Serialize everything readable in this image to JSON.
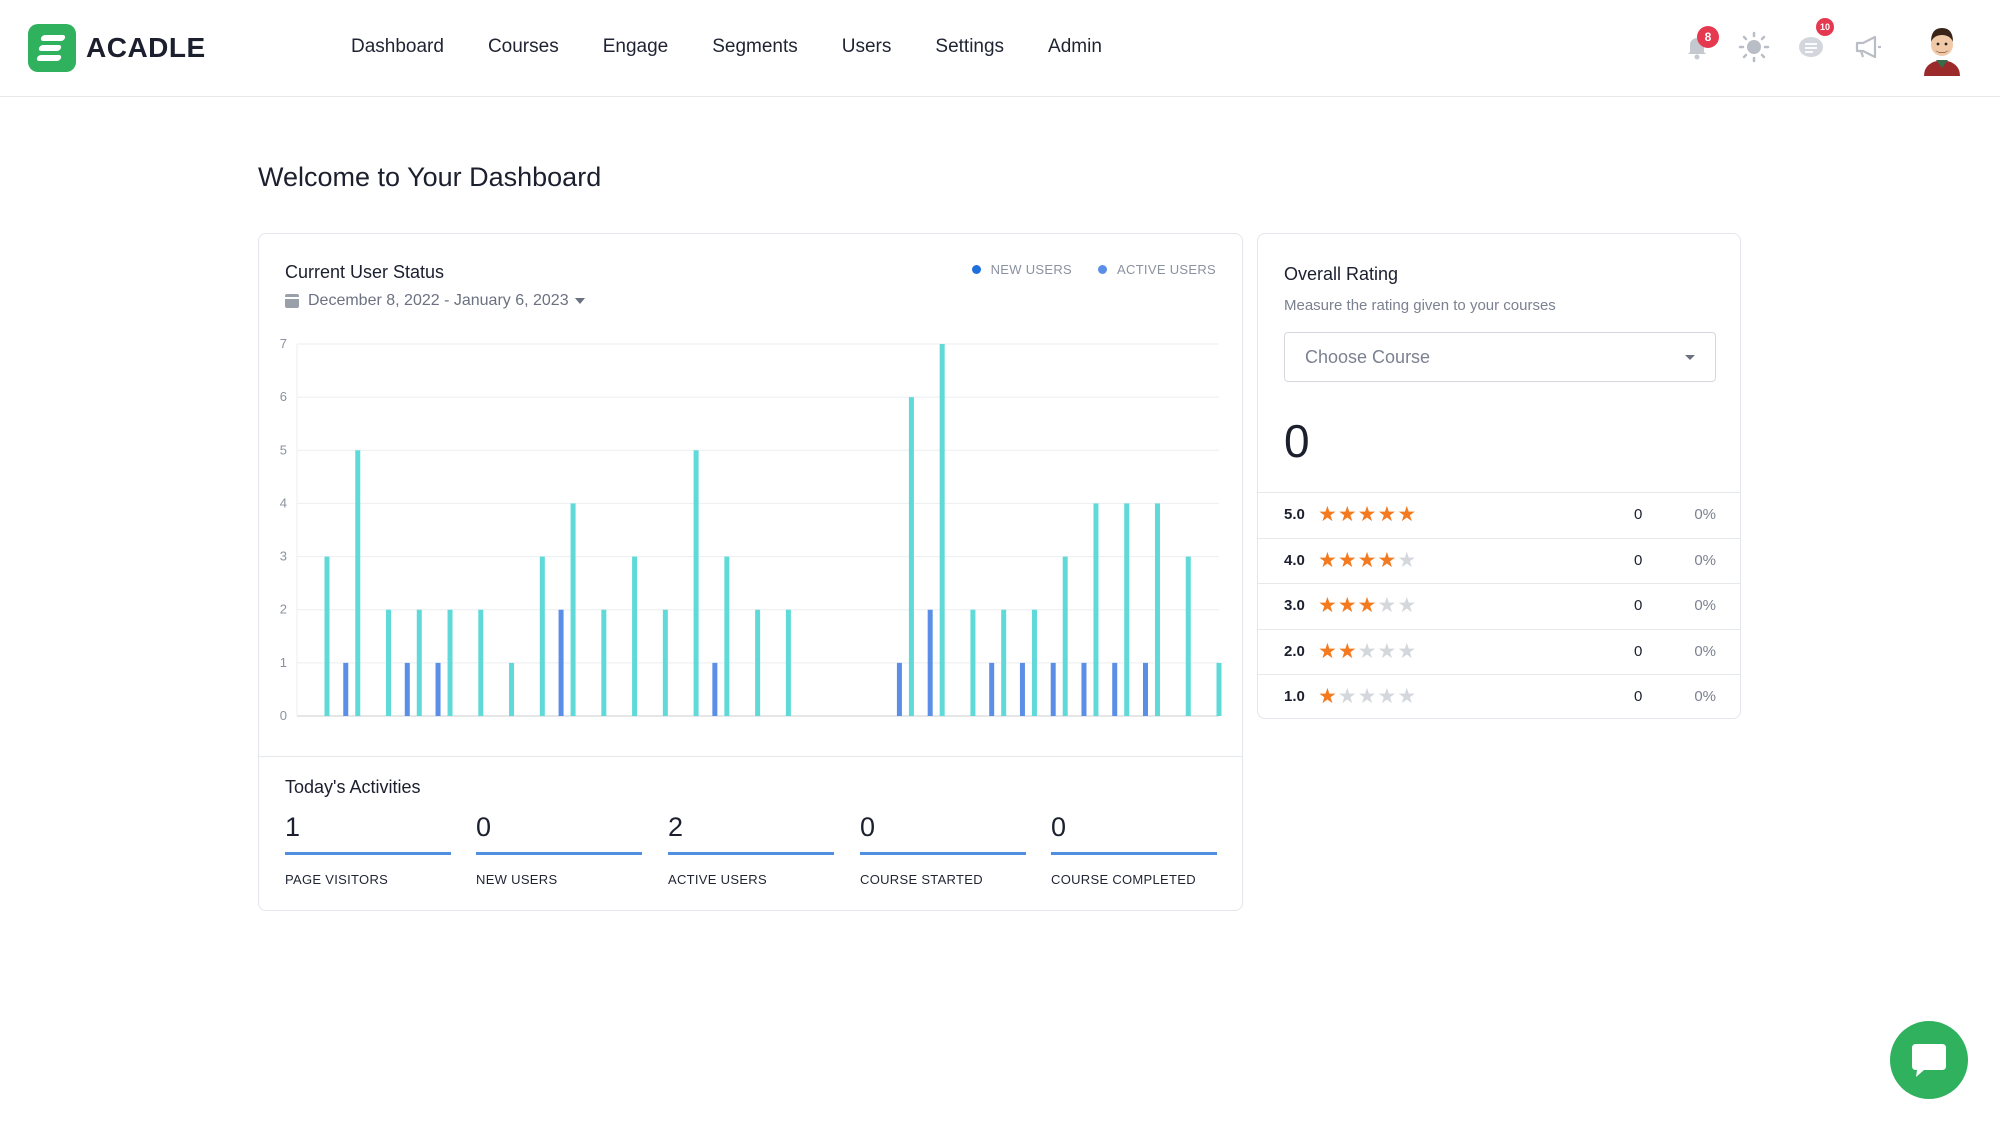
{
  "header": {
    "brand": "ACADLE",
    "nav": [
      "Dashboard",
      "Courses",
      "Engage",
      "Segments",
      "Users",
      "Settings",
      "Admin"
    ],
    "notification_count": "8",
    "message_count": "10",
    "icons": [
      "bell-icon",
      "sun-icon",
      "chat-lines-icon",
      "megaphone-icon"
    ]
  },
  "page": {
    "title": "Welcome to Your Dashboard"
  },
  "status_card": {
    "title": "Current User Status",
    "date_range": "December 8, 2022 - January 6, 2023",
    "legend": {
      "new_users": "NEW USERS",
      "active_users": "ACTIVE USERS"
    },
    "colors": {
      "new_users": "#5b8ee6",
      "active_users": "#5fdad8"
    }
  },
  "chart_data": {
    "type": "bar",
    "ylim": [
      0,
      7
    ],
    "yticks": [
      "0",
      "1",
      "2",
      "3",
      "4",
      "5",
      "6",
      "7"
    ],
    "grid": true,
    "legend_position": "top-right",
    "series": [
      {
        "name": "NEW USERS",
        "values": [
          0,
          1,
          0,
          1,
          1,
          0,
          0,
          0,
          2,
          0,
          0,
          0,
          0,
          1,
          0,
          0,
          0,
          0,
          0,
          1,
          2,
          0,
          1,
          1,
          1,
          1,
          1,
          1,
          0,
          0
        ]
      },
      {
        "name": "ACTIVE USERS",
        "values": [
          3,
          5,
          2,
          2,
          2,
          2,
          1,
          3,
          4,
          2,
          3,
          2,
          5,
          3,
          2,
          2,
          0,
          0,
          0,
          6,
          7,
          2,
          2,
          2,
          3,
          4,
          4,
          4,
          3,
          1
        ]
      }
    ]
  },
  "activities": {
    "title": "Today's Activities",
    "items": [
      {
        "value": "1",
        "label": "PAGE VISITORS"
      },
      {
        "value": "0",
        "label": "NEW USERS"
      },
      {
        "value": "2",
        "label": "ACTIVE USERS"
      },
      {
        "value": "0",
        "label": "COURSE STARTED"
      },
      {
        "value": "0",
        "label": "COURSE COMPLETED"
      }
    ]
  },
  "rating": {
    "title": "Overall Rating",
    "subtitle": "Measure the rating given to your courses",
    "select_placeholder": "Choose Course",
    "overall": "0",
    "rows": [
      {
        "score": "5.0",
        "stars": 5,
        "count": "0",
        "percent": "0%"
      },
      {
        "score": "4.0",
        "stars": 4,
        "count": "0",
        "percent": "0%"
      },
      {
        "score": "3.0",
        "stars": 3,
        "count": "0",
        "percent": "0%"
      },
      {
        "score": "2.0",
        "stars": 2,
        "count": "0",
        "percent": "0%"
      },
      {
        "score": "1.0",
        "stars": 1,
        "count": "0",
        "percent": "0%"
      }
    ]
  }
}
